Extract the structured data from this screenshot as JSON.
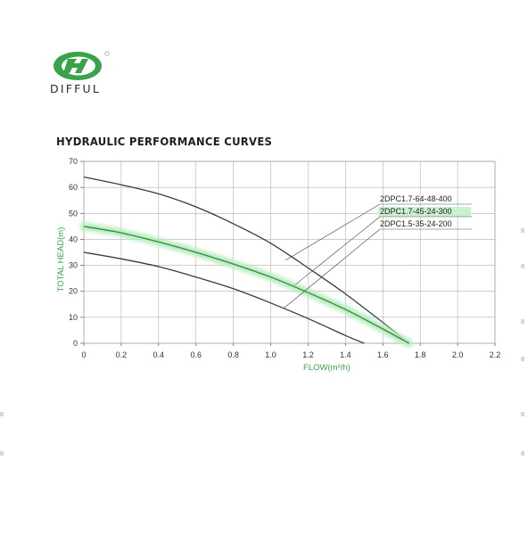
{
  "brand": {
    "name": "DIFFUL",
    "logo_color": "#3aa34a"
  },
  "title": "HYDRAULIC PERFORMANCE CURVES",
  "chart_data": {
    "type": "line",
    "title": "HYDRAULIC PERFORMANCE CURVES",
    "xlabel": "FLOW(m³/h)",
    "ylabel": "TOTAL HEAD(m)",
    "xlim": [
      0,
      2.2
    ],
    "ylim": [
      0,
      70
    ],
    "x_ticks": [
      "0",
      "0.2",
      "0.4",
      "0.6",
      "0.8",
      "1.0",
      "1.2",
      "1.4",
      "1.6",
      "1.8",
      "2.0",
      "2.2"
    ],
    "y_ticks": [
      "0",
      "10",
      "20",
      "30",
      "40",
      "50",
      "60",
      "70"
    ],
    "grid": true,
    "legend_placement": "top-right",
    "series": [
      {
        "name": "2DPC1.7-64-48-400",
        "color": "#3a3a3a",
        "highlight": false,
        "x": [
          0,
          0.2,
          0.4,
          0.6,
          0.8,
          1.0,
          1.2,
          1.4,
          1.6,
          1.74
        ],
        "y": [
          64,
          61,
          57.5,
          52.5,
          46,
          38.5,
          29,
          19,
          8,
          0
        ]
      },
      {
        "name": "2DPC1.7-45-24-300",
        "color": "#2e8b3a",
        "highlight": true,
        "x": [
          0,
          0.2,
          0.4,
          0.6,
          0.8,
          1.0,
          1.2,
          1.4,
          1.6,
          1.74
        ],
        "y": [
          45,
          42.5,
          39,
          35,
          30.5,
          25.5,
          19.5,
          13,
          5.5,
          0
        ]
      },
      {
        "name": "2DPC1.5-35-24-200",
        "color": "#3a3a3a",
        "highlight": false,
        "x": [
          0,
          0.2,
          0.4,
          0.6,
          0.8,
          1.0,
          1.2,
          1.4,
          1.5
        ],
        "y": [
          35,
          32.5,
          29.5,
          25.5,
          21,
          15.5,
          9.5,
          3,
          0
        ]
      }
    ]
  }
}
